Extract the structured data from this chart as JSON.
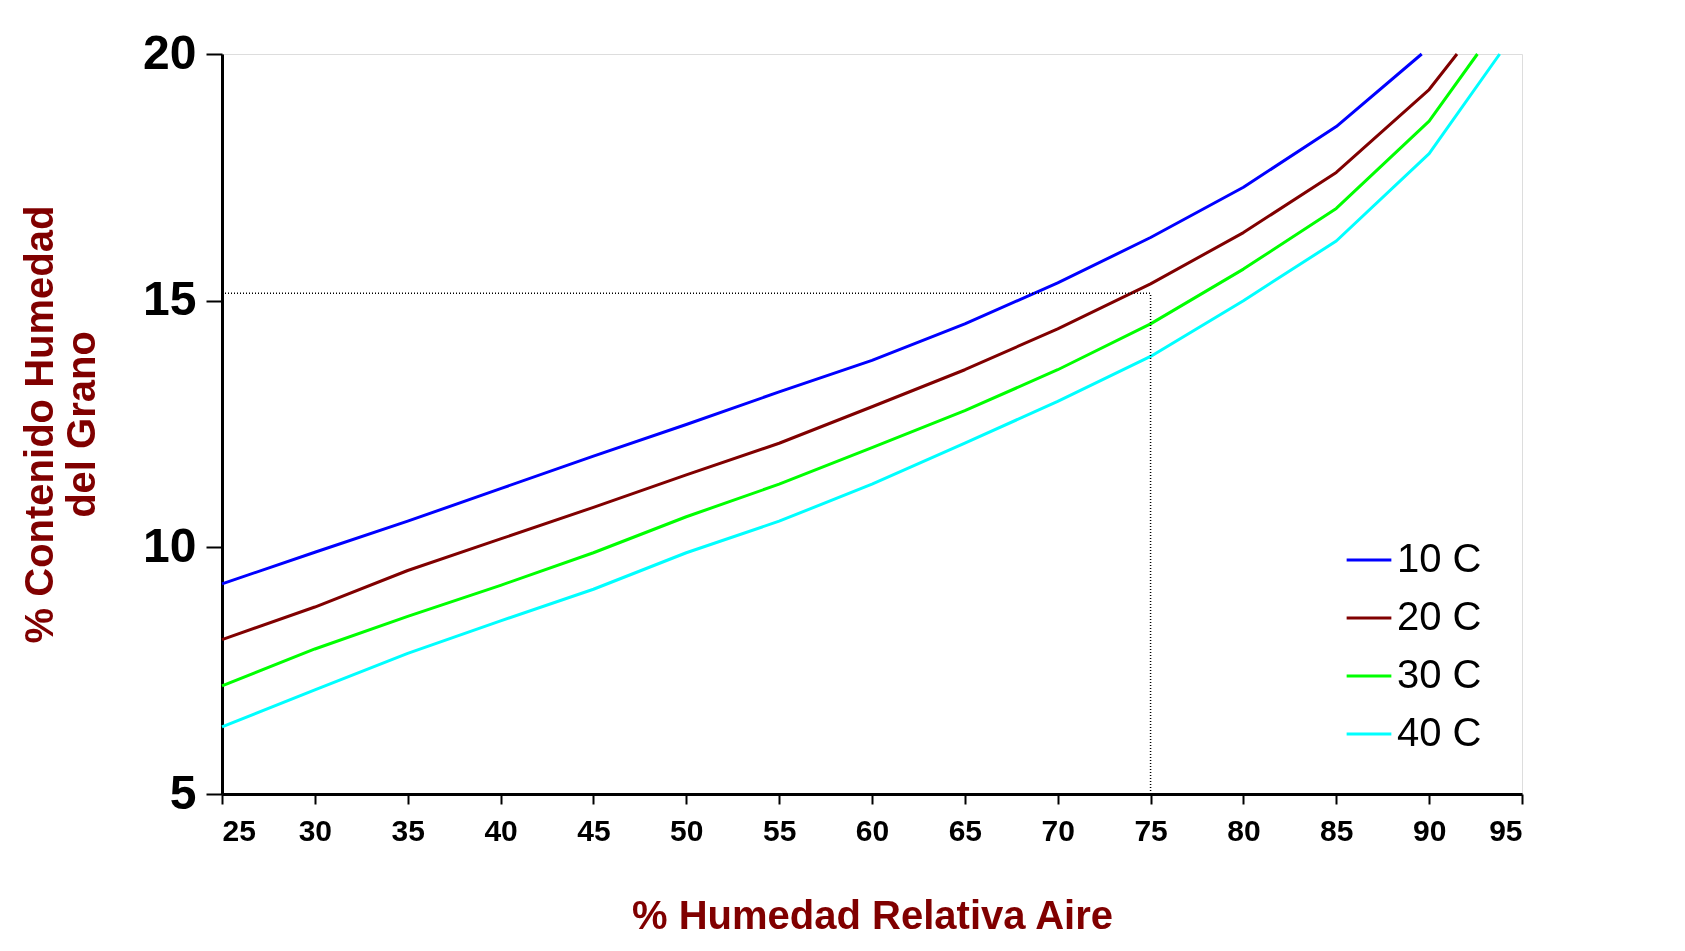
{
  "chart_data": {
    "type": "line",
    "xlabel": "% Humedad Relativa Aire",
    "ylabel": "% Contenido Humedad\ndel Grano",
    "xlim": [
      25,
      95
    ],
    "xticks": [
      25,
      30,
      35,
      40,
      45,
      50,
      55,
      60,
      65,
      70,
      75,
      80,
      85,
      90,
      95
    ],
    "ylim": [
      5,
      20
    ],
    "yticks": [
      5,
      10,
      15,
      20
    ],
    "grid": false,
    "legend": "bottom right",
    "marker": "none",
    "line_style": "solid",
    "series": [
      {
        "name": "10 C",
        "color": "#0000ff",
        "x": [
          25,
          30,
          35,
          40,
          45,
          50,
          55,
          60,
          65,
          70,
          75,
          80,
          85,
          89.6
        ],
        "values": [
          9.26,
          9.9,
          10.53,
          11.19,
          11.85,
          12.49,
          13.15,
          13.79,
          14.53,
          15.36,
          16.28,
          17.3,
          18.53,
          20.0
        ]
      },
      {
        "name": "20 C",
        "color": "#800000",
        "x": [
          25,
          30,
          35,
          40,
          45,
          50,
          55,
          60,
          65,
          70,
          75,
          80,
          85,
          90,
          91.5
        ],
        "values": [
          8.13,
          8.79,
          9.53,
          10.17,
          10.81,
          11.47,
          12.11,
          12.85,
          13.6,
          14.43,
          15.34,
          16.38,
          17.6,
          19.28,
          20.0
        ]
      },
      {
        "name": "30 C",
        "color": "#00ff00",
        "x": [
          25,
          30,
          35,
          40,
          45,
          50,
          55,
          60,
          65,
          70,
          75,
          80,
          85,
          90,
          92.6
        ],
        "values": [
          7.19,
          7.94,
          8.6,
          9.23,
          9.89,
          10.62,
          11.28,
          12.02,
          12.77,
          13.6,
          14.53,
          15.64,
          16.87,
          18.64,
          20.0
        ]
      },
      {
        "name": "40 C",
        "color": "#00ffff",
        "x": [
          25,
          30,
          35,
          40,
          45,
          50,
          55,
          60,
          65,
          70,
          75,
          80,
          85,
          90,
          93.8
        ],
        "values": [
          6.36,
          7.11,
          7.85,
          8.51,
          9.15,
          9.89,
          10.53,
          11.28,
          12.11,
          12.96,
          13.87,
          15.0,
          16.21,
          17.98,
          20.0
        ]
      }
    ],
    "ref_lines": [
      {
        "axis": "y",
        "value": 15.15,
        "color": "#000000",
        "line_style": "dotted"
      },
      {
        "axis": "x",
        "value": 75,
        "color": "#000000",
        "line_style": "dotted"
      }
    ]
  }
}
